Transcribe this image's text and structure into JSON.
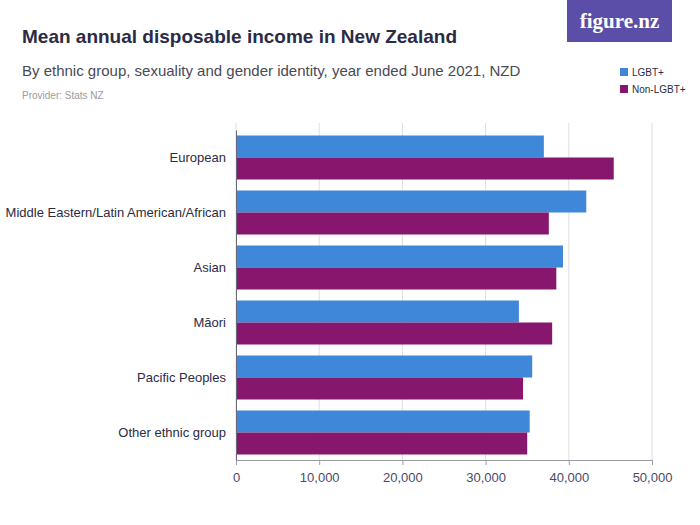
{
  "chart_data": {
    "type": "bar",
    "orientation": "horizontal",
    "title": "Mean annual disposable income in New Zealand",
    "subtitle": "By ethnic group, sexuality and gender identity, year ended June 2021, NZD",
    "source": "Provider: Stats NZ",
    "annotations": [
      "figure.nz"
    ],
    "categories": [
      "European",
      "Middle Eastern/Latin American/African",
      "Asian",
      "Māori",
      "Pacific Peoples",
      "Other ethnic group"
    ],
    "series": [
      {
        "name": "LGBT+",
        "color": "#3f87d8",
        "values": [
          37000,
          42100,
          39300,
          34000,
          35600,
          35300
        ]
      },
      {
        "name": "Non-LGBT+",
        "color": "#86176c",
        "values": [
          45400,
          37600,
          38500,
          38000,
          34500,
          35000
        ]
      }
    ],
    "xlim": [
      0,
      50000
    ],
    "xticks": [
      0,
      {
        "value": 10000,
        "label": "10,000"
      },
      {
        "value": 20000,
        "label": "20,000"
      },
      {
        "value": 30000,
        "label": "30,000"
      },
      {
        "value": 40000,
        "label": "40,000"
      },
      {
        "value": 50000,
        "label": "50,000"
      }
    ],
    "grid": true,
    "legend": "top-right"
  }
}
